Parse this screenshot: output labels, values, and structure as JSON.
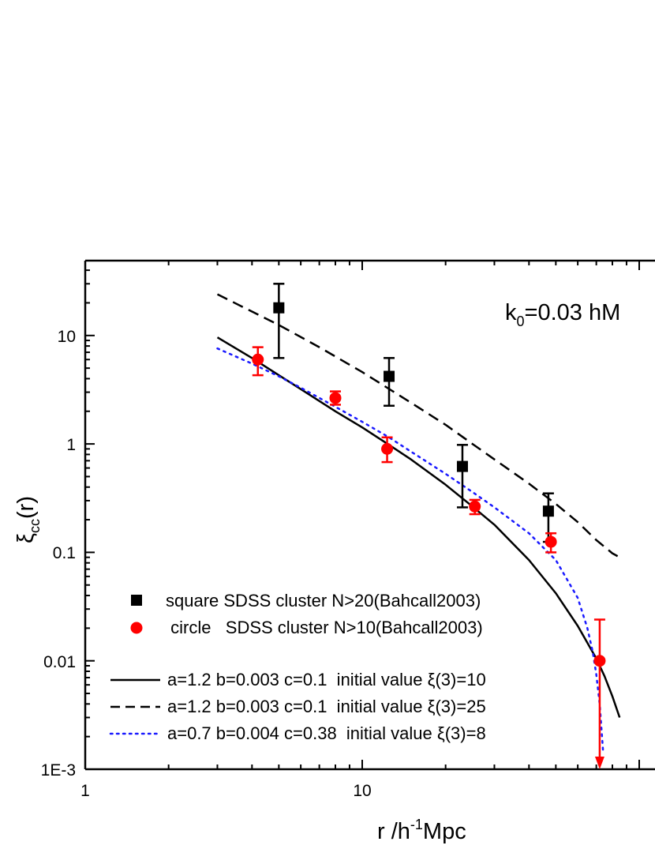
{
  "chart_data": {
    "type": "scatter",
    "title": "",
    "xlabel": "r /h^-1Mpc",
    "xlabel_parts": {
      "main": "r /h",
      "sup": "-1",
      "tail": "Mpc"
    },
    "ylabel": "ξcc(r)",
    "ylabel_parts": {
      "main": "ξ",
      "sub": "cc",
      "tail": "(r)"
    },
    "xscale": "log",
    "yscale": "log",
    "xlim": [
      1,
      100
    ],
    "ylim": [
      0.001,
      50
    ],
    "x_ticks": [
      {
        "value": 1,
        "label": "1"
      },
      {
        "value": 10,
        "label": "10"
      }
    ],
    "y_ticks": [
      {
        "value": 0.001,
        "label": "1E-3"
      },
      {
        "value": 0.01,
        "label": "0.01"
      },
      {
        "value": 0.1,
        "label": "0.1"
      },
      {
        "value": 1,
        "label": "1"
      },
      {
        "value": 10,
        "label": "10"
      }
    ],
    "annotation": {
      "main": "k",
      "sub": "0",
      "tail": "=0.03 hM"
    },
    "series": [
      {
        "name": "square SDSS cluster N>20(Bahcall2003)",
        "marker": "square",
        "color": "#000000",
        "points": [
          {
            "x": 5.0,
            "y": 18.0,
            "lo": 6.2,
            "hi": 30.0
          },
          {
            "x": 12.5,
            "y": 4.2,
            "lo": 2.25,
            "hi": 6.2
          },
          {
            "x": 23.0,
            "y": 0.62,
            "lo": 0.26,
            "hi": 0.98
          },
          {
            "x": 47.0,
            "y": 0.24,
            "lo": 0.125,
            "hi": 0.35
          }
        ]
      },
      {
        "name": " circle   SDSS cluster N>10(Bahcall2003)",
        "marker": "circle",
        "color": "#ff0000",
        "points": [
          {
            "x": 4.2,
            "y": 6.0,
            "lo": 4.3,
            "hi": 7.8
          },
          {
            "x": 8.0,
            "y": 2.65,
            "lo": 2.3,
            "hi": 3.05
          },
          {
            "x": 12.3,
            "y": 0.9,
            "lo": 0.68,
            "hi": 1.15
          },
          {
            "x": 25.5,
            "y": 0.265,
            "lo": 0.225,
            "hi": 0.305
          },
          {
            "x": 48.0,
            "y": 0.125,
            "lo": 0.1,
            "hi": 0.15
          },
          {
            "x": 72.0,
            "y": 0.01,
            "lo": 0.001,
            "hi": 0.024,
            "arrow": true
          }
        ]
      },
      {
        "name": "a=1.2 b=0.003 c=0.1  initial value ξ(3)=10",
        "line_style": "solid",
        "color": "#000000",
        "x": [
          3,
          4,
          5,
          6,
          8,
          10,
          12.5,
          15,
          20,
          25,
          30,
          40,
          50,
          60,
          70,
          75,
          80,
          85
        ],
        "y": [
          9.6,
          6.2,
          4.3,
          3.2,
          2.0,
          1.42,
          0.98,
          0.72,
          0.42,
          0.265,
          0.18,
          0.085,
          0.042,
          0.021,
          0.0105,
          0.0072,
          0.0047,
          0.003
        ]
      },
      {
        "name": "a=1.2 b=0.003 c=0.1  initial value ξ(3)=25",
        "line_style": "dashed",
        "color": "#000000",
        "x": [
          3,
          5,
          7,
          10,
          15,
          20,
          25,
          30,
          40,
          50,
          60,
          70,
          80,
          85
        ],
        "y": [
          24,
          12.5,
          7.8,
          4.6,
          2.4,
          1.5,
          1.0,
          0.72,
          0.43,
          0.28,
          0.19,
          0.13,
          0.098,
          0.09
        ]
      },
      {
        "name": "a=0.7 b=0.004 c=0.38  initial value ξ(3)=8",
        "line_style": "dotted",
        "color": "#1a1aff",
        "x": [
          3,
          4,
          5,
          6,
          8,
          10,
          12.5,
          15,
          20,
          25,
          30,
          40,
          50,
          60,
          65,
          68,
          70,
          72,
          74
        ],
        "y": [
          7.6,
          5.5,
          4.2,
          3.3,
          2.2,
          1.6,
          1.15,
          0.85,
          0.53,
          0.36,
          0.26,
          0.15,
          0.085,
          0.038,
          0.02,
          0.012,
          0.0075,
          0.004,
          0.0015
        ]
      }
    ]
  }
}
